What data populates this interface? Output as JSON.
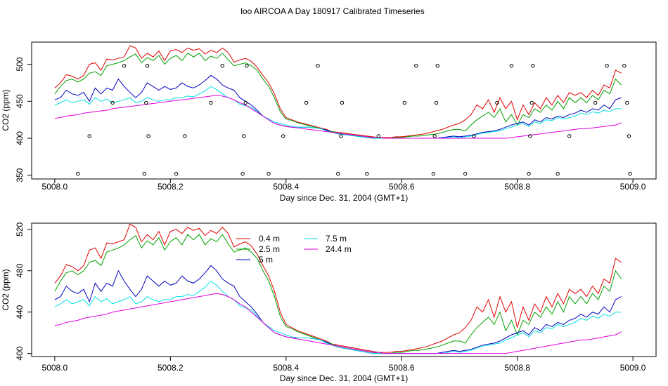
{
  "title": "loo AIRCOA A  Day 180917  Calibrated Timeseries",
  "colors": {
    "0.4 m": "#e00000",
    "2.5 m": "#00a000",
    "5 m": "#0000c0",
    "7.5 m": "#00e0e0",
    "24.4 m": "#e000e0"
  },
  "chart_data": [
    {
      "type": "line+scatter",
      "xlabel": "Day since Dec. 31, 2004 (GMT+1)",
      "ylabel": "CO2 (ppm)",
      "xlim": [
        5007.96,
        5009.04
      ],
      "ylim": [
        345,
        530
      ],
      "xticks": [
        "5008.0",
        "5008.2",
        "5008.4",
        "5008.6",
        "5008.8",
        "5009.0"
      ],
      "yticks": [
        "350",
        "400",
        "450",
        "500"
      ],
      "legend": "none",
      "scatter": {
        "x": [
          5008.04,
          5008.06,
          5008.1,
          5008.12,
          5008.155,
          5008.158,
          5008.16,
          5008.162,
          5008.21,
          5008.225,
          5008.27,
          5008.29,
          5008.325,
          5008.327,
          5008.33,
          5008.332,
          5008.37,
          5008.395,
          5008.435,
          5008.455,
          5008.49,
          5008.495,
          5008.497,
          5008.54,
          5008.56,
          5008.605,
          5008.625,
          5008.655,
          5008.657,
          5008.66,
          5008.662,
          5008.71,
          5008.725,
          5008.765,
          5008.79,
          5008.82,
          5008.822,
          5008.825,
          5008.827,
          5008.87,
          5008.89,
          5008.935,
          5008.955,
          5008.985,
          5008.99,
          5008.993,
          5008.995
        ],
        "y": [
          352,
          403,
          448,
          498,
          352,
          448,
          498,
          403,
          352,
          403,
          448,
          498,
          352,
          403,
          448,
          498,
          352,
          403,
          448,
          498,
          352,
          403,
          448,
          352,
          403,
          448,
          498,
          352,
          403,
          448,
          498,
          352,
          403,
          448,
          498,
          352,
          403,
          448,
          498,
          352,
          403,
          448,
          498,
          498,
          448,
          403,
          352
        ]
      }
    },
    {
      "type": "line",
      "xlabel": "Day since Dec. 31, 2004 (GMT+1)",
      "ylabel": "CO2 (ppm)",
      "xlim": [
        5007.96,
        5009.04
      ],
      "ylim": [
        397,
        526
      ],
      "xticks": [
        "5008.0",
        "5008.2",
        "5008.4",
        "5008.6",
        "5008.8",
        "5009.0"
      ],
      "yticks": [
        "400",
        "440",
        "480",
        "520"
      ],
      "legend": "top-center"
    }
  ],
  "series_data": {
    "x": [
      5008.0,
      5008.01,
      5008.02,
      5008.03,
      5008.04,
      5008.05,
      5008.06,
      5008.07,
      5008.08,
      5008.09,
      5008.1,
      5008.11,
      5008.12,
      5008.13,
      5008.14,
      5008.15,
      5008.16,
      5008.17,
      5008.18,
      5008.19,
      5008.2,
      5008.21,
      5008.22,
      5008.23,
      5008.24,
      5008.25,
      5008.26,
      5008.27,
      5008.28,
      5008.29,
      5008.3,
      5008.31,
      5008.32,
      5008.33,
      5008.34,
      5008.35,
      5008.36,
      5008.37,
      5008.38,
      5008.39,
      5008.4,
      5008.41,
      5008.42,
      5008.43,
      5008.44,
      5008.45,
      5008.46,
      5008.47,
      5008.48,
      5008.49,
      5008.5,
      5008.51,
      5008.52,
      5008.53,
      5008.54,
      5008.55,
      5008.56,
      5008.57,
      5008.58,
      5008.59,
      5008.6,
      5008.61,
      5008.62,
      5008.63,
      5008.64,
      5008.65,
      5008.66,
      5008.67,
      5008.68,
      5008.69,
      5008.7,
      5008.71,
      5008.72,
      5008.73,
      5008.74,
      5008.75,
      5008.76,
      5008.77,
      5008.78,
      5008.79,
      5008.8,
      5008.81,
      5008.82,
      5008.83,
      5008.84,
      5008.85,
      5008.86,
      5008.87,
      5008.88,
      5008.89,
      5008.9,
      5008.91,
      5008.92,
      5008.93,
      5008.94,
      5008.95,
      5008.96,
      5008.97,
      5008.98
    ],
    "series": [
      {
        "name": "0.4 m",
        "values": [
          468,
          475,
          486,
          484,
          480,
          485,
          500,
          502,
          492,
          507,
          506,
          508,
          510,
          525,
          522,
          508,
          515,
          510,
          518,
          505,
          518,
          520,
          516,
          522,
          519,
          521,
          514,
          519,
          516,
          522,
          516,
          503,
          506,
          508,
          504,
          496,
          485,
          475,
          460,
          440,
          428,
          425,
          422,
          420,
          418,
          416,
          414,
          412,
          409,
          408,
          407,
          406,
          405,
          404,
          403,
          402,
          401,
          401,
          401,
          402,
          402,
          403,
          404,
          405,
          406,
          408,
          410,
          412,
          415,
          418,
          420,
          425,
          432,
          445,
          440,
          452,
          435,
          455,
          440,
          450,
          425,
          445,
          432,
          448,
          440,
          455,
          445,
          458,
          448,
          462,
          458,
          462,
          455,
          465,
          458,
          472,
          468,
          492,
          488
        ]
      },
      {
        "name": "2.5 m",
        "values": [
          460,
          470,
          478,
          480,
          476,
          480,
          488,
          490,
          485,
          498,
          500,
          502,
          505,
          510,
          514,
          502,
          509,
          505,
          512,
          500,
          508,
          512,
          505,
          515,
          510,
          515,
          505,
          511,
          508,
          515,
          506,
          498,
          500,
          502,
          498,
          492,
          480,
          470,
          455,
          436,
          426,
          424,
          421,
          419,
          417,
          415,
          413,
          411,
          409,
          407,
          406,
          405,
          404,
          403,
          402,
          401,
          400,
          400,
          400,
          401,
          401,
          402,
          403,
          403,
          404,
          405,
          406,
          408,
          410,
          412,
          412,
          410,
          418,
          425,
          430,
          435,
          428,
          440,
          422,
          432,
          418,
          432,
          428,
          440,
          435,
          445,
          438,
          450,
          440,
          455,
          448,
          455,
          448,
          458,
          452,
          465,
          460,
          480,
          472
        ]
      },
      {
        "name": "5 m",
        "values": [
          452,
          455,
          465,
          460,
          458,
          462,
          450,
          468,
          460,
          468,
          465,
          480,
          470,
          462,
          455,
          462,
          475,
          470,
          465,
          470,
          466,
          468,
          475,
          470,
          468,
          472,
          478,
          485,
          480,
          472,
          468,
          465,
          455,
          450,
          445,
          438,
          430,
          425,
          420,
          418,
          416,
          415,
          415,
          415,
          415,
          414,
          413,
          411,
          408,
          406,
          405,
          404,
          403,
          402,
          401,
          400,
          400,
          400,
          400,
          400,
          400,
          400,
          400,
          400,
          400,
          400,
          400,
          401,
          402,
          403,
          402,
          403,
          404,
          406,
          408,
          409,
          410,
          412,
          415,
          418,
          420,
          422,
          418,
          425,
          422,
          428,
          426,
          430,
          428,
          432,
          434,
          438,
          435,
          440,
          438,
          445,
          440,
          452,
          455
        ]
      },
      {
        "name": "7.5 m",
        "values": [
          445,
          448,
          452,
          448,
          450,
          452,
          446,
          455,
          450,
          453,
          448,
          450,
          452,
          455,
          448,
          450,
          455,
          452,
          450,
          452,
          452,
          455,
          455,
          457,
          456,
          460,
          464,
          470,
          466,
          460,
          455,
          452,
          446,
          444,
          442,
          436,
          430,
          426,
          422,
          420,
          418,
          416,
          415,
          415,
          415,
          414,
          413,
          410,
          408,
          406,
          405,
          404,
          403,
          402,
          401,
          400,
          400,
          400,
          400,
          400,
          400,
          400,
          400,
          400,
          400,
          400,
          400,
          400,
          401,
          402,
          401,
          402,
          403,
          405,
          407,
          408,
          409,
          410,
          413,
          415,
          418,
          420,
          416,
          422,
          420,
          425,
          424,
          428,
          426,
          428,
          430,
          434,
          432,
          436,
          434,
          438,
          436,
          440,
          440
        ]
      },
      {
        "name": "24.4 m",
        "values": [
          427,
          428,
          430,
          431,
          432,
          434,
          435,
          436,
          437,
          438,
          440,
          441,
          442,
          443,
          444,
          445,
          446,
          447,
          448,
          449,
          450,
          451,
          452,
          453,
          454,
          455,
          456,
          457,
          458,
          457,
          455,
          452,
          448,
          445,
          440,
          435,
          430,
          425,
          420,
          418,
          416,
          415,
          414,
          413,
          412,
          411,
          410,
          409,
          408,
          407,
          406,
          405,
          404,
          403,
          402,
          401,
          401,
          400,
          400,
          400,
          400,
          400,
          400,
          400,
          400,
          400,
          400,
          400,
          400,
          400,
          400,
          400,
          400,
          400,
          400,
          400,
          400,
          400,
          400,
          401,
          402,
          403,
          404,
          405,
          406,
          407,
          408,
          409,
          410,
          411,
          412,
          413,
          413,
          414,
          415,
          416,
          417,
          418,
          421
        ]
      }
    ]
  }
}
